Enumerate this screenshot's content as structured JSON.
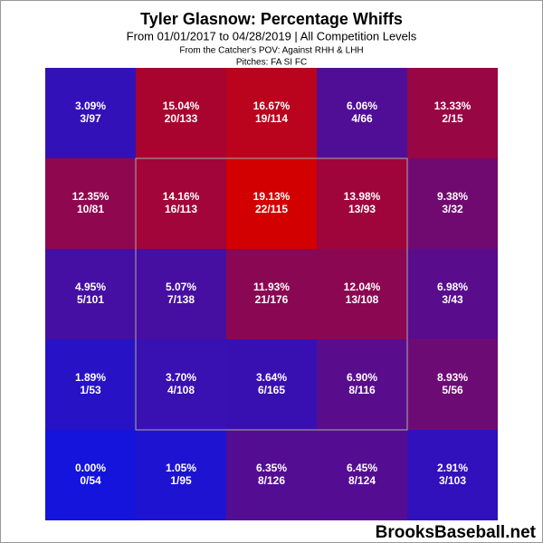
{
  "chart_data": {
    "type": "heatmap",
    "title": "Tyler Glasnow: Percentage Whiffs",
    "subtitle": "From 01/01/2017 to 04/28/2019 | All Competition Levels",
    "notes": [
      "From the Catcher's POV:  Against RHH & LHH",
      "Pitches:  FA  SI  FC"
    ],
    "values": [
      [
        3.09,
        15.04,
        16.67,
        6.06,
        13.33
      ],
      [
        12.35,
        14.16,
        19.13,
        13.98,
        9.38
      ],
      [
        4.95,
        5.07,
        11.93,
        12.04,
        6.98
      ],
      [
        1.89,
        3.7,
        3.64,
        6.9,
        8.93
      ],
      [
        0.0,
        1.05,
        6.35,
        6.45,
        2.91
      ]
    ],
    "value_labels": [
      [
        "3.09%",
        "15.04%",
        "16.67%",
        "6.06%",
        "13.33%"
      ],
      [
        "12.35%",
        "14.16%",
        "19.13%",
        "13.98%",
        "9.38%"
      ],
      [
        "4.95%",
        "5.07%",
        "11.93%",
        "12.04%",
        "6.98%"
      ],
      [
        "1.89%",
        "3.70%",
        "3.64%",
        "6.90%",
        "8.93%"
      ],
      [
        "0.00%",
        "1.05%",
        "6.35%",
        "6.45%",
        "2.91%"
      ]
    ],
    "counts": [
      [
        "3/97",
        "20/133",
        "19/114",
        "4/66",
        "2/15"
      ],
      [
        "10/81",
        "16/113",
        "22/115",
        "13/93",
        "3/32"
      ],
      [
        "5/101",
        "7/138",
        "21/176",
        "13/108",
        "3/43"
      ],
      [
        "1/53",
        "4/108",
        "6/165",
        "8/116",
        "5/56"
      ],
      [
        "0/54",
        "1/95",
        "8/126",
        "8/124",
        "3/103"
      ]
    ],
    "color_low": "#1414dc",
    "color_high": "#d20000",
    "footer": "BrooksBaseball.net"
  }
}
